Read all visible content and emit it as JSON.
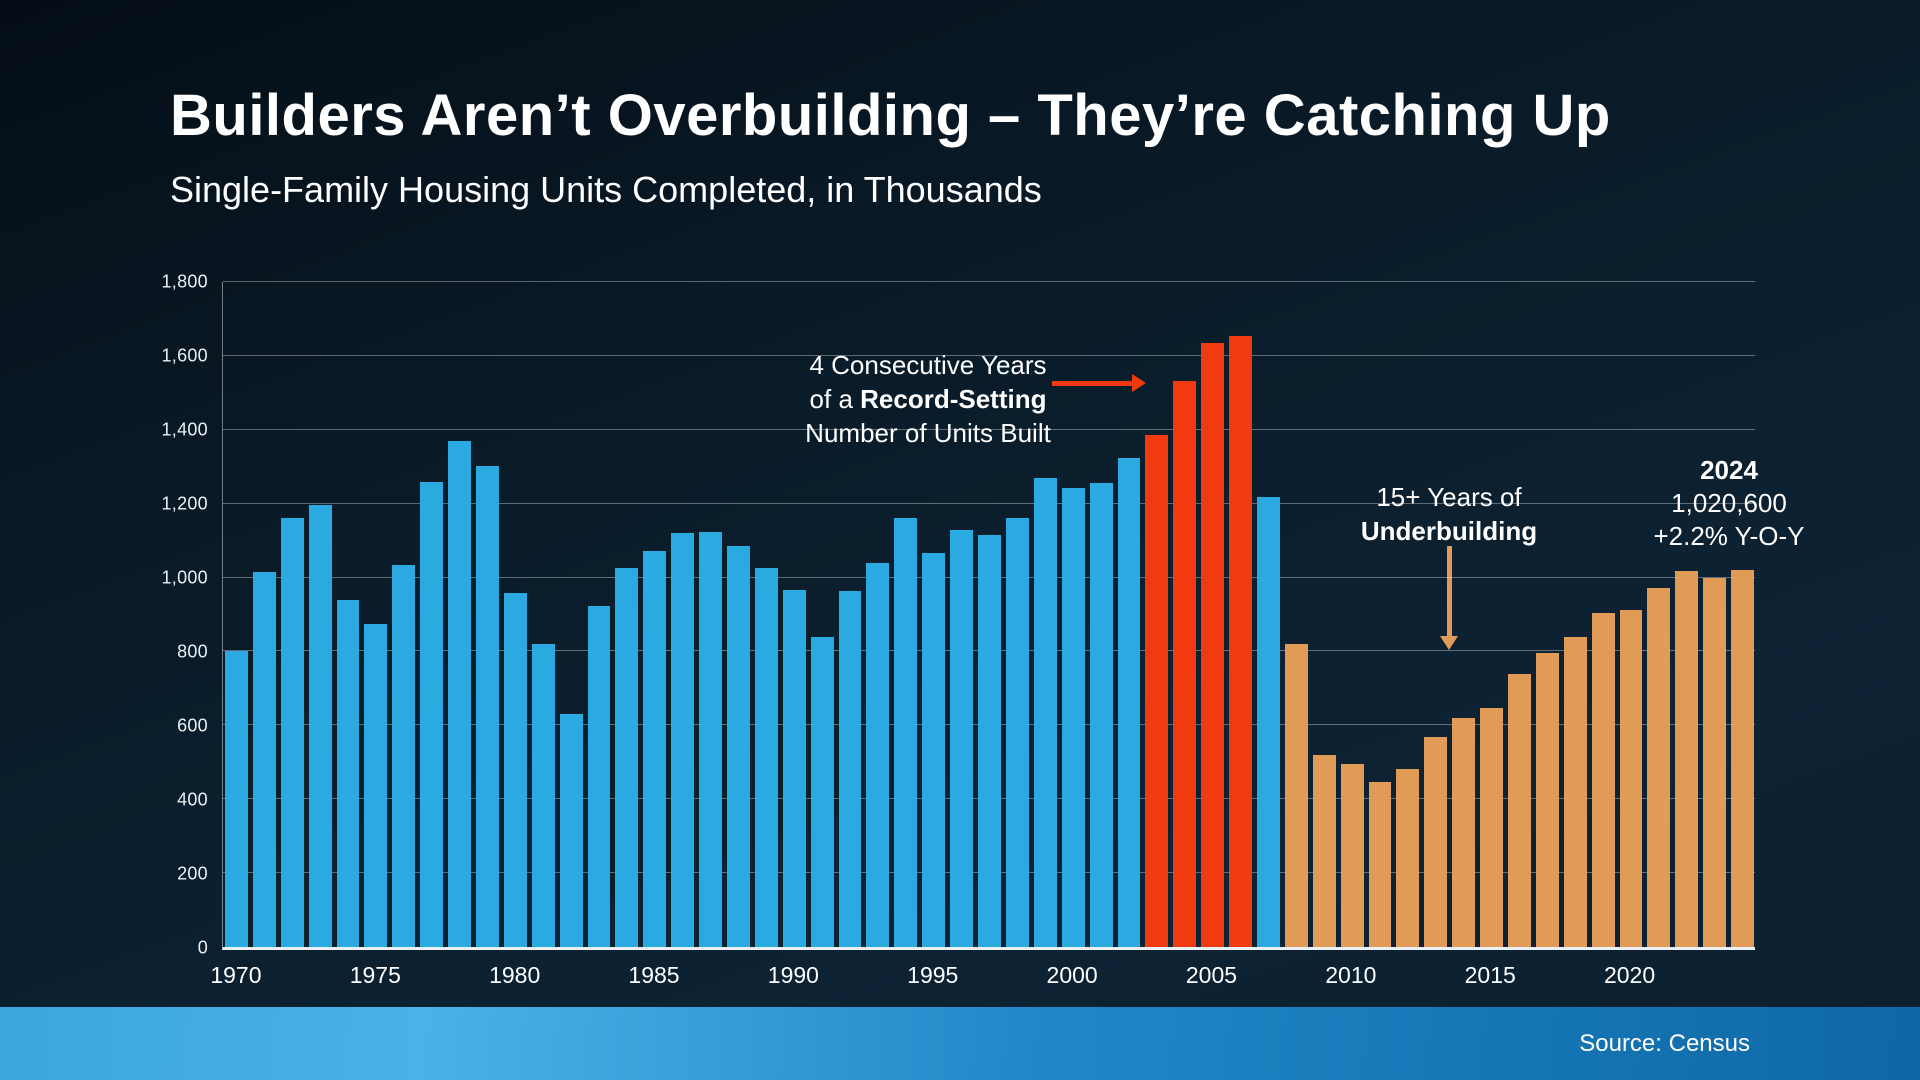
{
  "header": {
    "title": "Builders Aren’t Overbuilding – They’re Catching Up",
    "subtitle": "Single-Family Housing Units Completed, in Thousands"
  },
  "footer": {
    "source": "Source: Census"
  },
  "colors": {
    "bar_blue": "#2BA9E1",
    "bar_red": "#F23A10",
    "bar_orange": "#E29B57",
    "grid": "rgba(255,255,255,0.35)",
    "axis": "#EAF0F4",
    "text": "#FFFFFF",
    "footer_left": "#3BA6DE",
    "footer_right": "#0E67A6"
  },
  "annotations": {
    "record": {
      "line1": "4 Consecutive Years",
      "line2_prefix": "of a ",
      "line2_bold": "Record-Setting",
      "line3": "Number of Units Built"
    },
    "underbuilding": {
      "line1": "15+ Years of",
      "line2_bold": "Underbuilding"
    },
    "latest": {
      "year": "2024",
      "value": "1,020,600",
      "yoy": "+2.2% Y-O-Y"
    }
  },
  "chart_data": {
    "type": "bar",
    "title": "Builders Aren’t Overbuilding – They’re Catching Up",
    "subtitle": "Single-Family Housing Units Completed, in Thousands",
    "ylabel": "Single-Family Housing Units Completed (Thousands)",
    "ylim": [
      0,
      1800
    ],
    "grid": true,
    "legend": "none",
    "ytick_values": [
      0,
      200,
      400,
      600,
      800,
      1000,
      1200,
      1400,
      1600,
      1800
    ],
    "ytick_labels": [
      "0",
      "200",
      "400",
      "600",
      "800",
      "1,000",
      "1,200",
      "1,400",
      "1,600",
      "1,800"
    ],
    "xtick_years": [
      1970,
      1975,
      1980,
      1985,
      1990,
      1995,
      2000,
      2005,
      2010,
      2015,
      2020
    ],
    "years": [
      1970,
      1971,
      1972,
      1973,
      1974,
      1975,
      1976,
      1977,
      1978,
      1979,
      1980,
      1981,
      1982,
      1983,
      1984,
      1985,
      1986,
      1987,
      1988,
      1989,
      1990,
      1991,
      1992,
      1993,
      1994,
      1995,
      1996,
      1997,
      1998,
      1999,
      2000,
      2001,
      2002,
      2003,
      2004,
      2005,
      2006,
      2007,
      2008,
      2009,
      2010,
      2011,
      2012,
      2013,
      2014,
      2015,
      2016,
      2017,
      2018,
      2019,
      2020,
      2021,
      2022,
      2023,
      2024
    ],
    "values": [
      802,
      1014,
      1160,
      1197,
      940,
      875,
      1034,
      1258,
      1369,
      1301,
      957,
      819,
      632,
      924,
      1025,
      1072,
      1120,
      1123,
      1085,
      1026,
      966,
      838,
      964,
      1039,
      1160,
      1066,
      1129,
      1116,
      1160,
      1270,
      1242,
      1256,
      1325,
      1386,
      1532,
      1636,
      1655,
      1218,
      819,
      520,
      496,
      447,
      483,
      569,
      620,
      648,
      738,
      795,
      840,
      903,
      912,
      971,
      1019,
      998,
      1021
    ],
    "color_groups": [
      {
        "from": 1970,
        "to": 2002,
        "color": "bar_blue"
      },
      {
        "from": 2003,
        "to": 2006,
        "color": "bar_red"
      },
      {
        "from": 2007,
        "to": 2007,
        "color": "bar_blue"
      },
      {
        "from": 2008,
        "to": 2024,
        "color": "bar_orange"
      }
    ]
  }
}
